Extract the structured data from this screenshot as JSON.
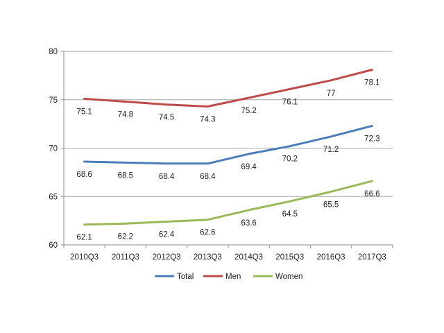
{
  "chart_data": {
    "type": "line",
    "categories": [
      "2010Q3",
      "2011Q3",
      "2012Q3",
      "2013Q3",
      "2014Q3",
      "2015Q3",
      "2016Q3",
      "2017Q3"
    ],
    "series": [
      {
        "name": "Total",
        "color": "#4a7ebb",
        "values": [
          68.6,
          68.5,
          68.4,
          68.4,
          69.4,
          70.2,
          71.2,
          72.3
        ]
      },
      {
        "name": "Men",
        "color": "#be4b48",
        "values": [
          75.1,
          74.8,
          74.5,
          74.3,
          75.2,
          76.1,
          77,
          78.1
        ]
      },
      {
        "name": "Women",
        "color": "#98b954",
        "values": [
          62.1,
          62.2,
          62.4,
          62.6,
          63.6,
          64.5,
          65.5,
          66.6
        ]
      }
    ],
    "ylim": [
      60,
      80
    ],
    "yticks": [
      "60",
      "65",
      "70",
      "75",
      "80"
    ],
    "grid": true,
    "legend_position": "bottom",
    "title": "",
    "xlabel": "",
    "ylabel": ""
  }
}
